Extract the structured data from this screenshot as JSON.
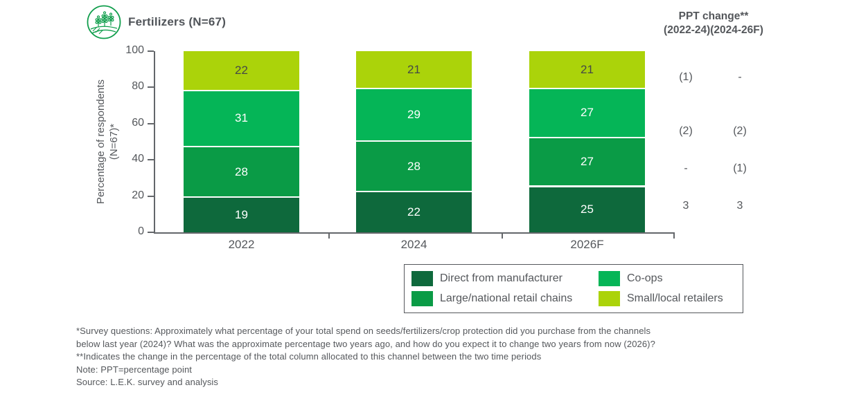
{
  "header": {
    "title": "Fertilizers (N=67)",
    "icon": "crops-field-icon",
    "ppt_header_line1": "PPT change**",
    "ppt_header_line2": "(2022-24)(2024-26F)"
  },
  "chart_data": {
    "type": "bar",
    "stacked": true,
    "title": "Fertilizers (N=67)",
    "categories": [
      "2022",
      "2024",
      "2026F"
    ],
    "series": [
      {
        "name": "Direct from manufacturer",
        "color": "#0e693c",
        "label_color": "#ffffff",
        "values": [
          19,
          22,
          25
        ]
      },
      {
        "name": "Large/national retail chains",
        "color": "#0a9b46",
        "label_color": "#ffffff",
        "values": [
          28,
          28,
          27
        ]
      },
      {
        "name": "Co-ops",
        "color": "#05b557",
        "label_color": "#ffffff",
        "values": [
          31,
          29,
          27
        ]
      },
      {
        "name": "Small/local retailers",
        "color": "#abd30a",
        "label_color": "#454847",
        "values": [
          22,
          21,
          21
        ]
      }
    ],
    "ylabel_line1": "Percentage of respondents",
    "ylabel_line2": "(N=67)*",
    "ylim": [
      0,
      100
    ],
    "yticks": [
      0,
      20,
      40,
      60,
      80,
      100
    ],
    "grid": false,
    "legend_position": "bottom-right"
  },
  "ppt_change": {
    "header_line1": "PPT change**",
    "header_line2": "(2022-24)(2024-26F)",
    "columns": [
      "2022-24",
      "2024-26F"
    ],
    "rows": [
      {
        "series": "Small/local retailers",
        "values": [
          "(1)",
          "-"
        ]
      },
      {
        "series": "Co-ops",
        "values": [
          "(2)",
          "(2)"
        ]
      },
      {
        "series": "Large/national retail chains",
        "values": [
          "-",
          "(1)"
        ]
      },
      {
        "series": "Direct from manufacturer",
        "values": [
          "3",
          "3"
        ]
      }
    ]
  },
  "legend": {
    "items": [
      {
        "label": "Direct from manufacturer",
        "color": "#0e693c"
      },
      {
        "label": "Co-ops",
        "color": "#05b557"
      },
      {
        "label": "Large/national retail chains",
        "color": "#0a9b46"
      },
      {
        "label": "Small/local retailers",
        "color": "#abd30a"
      }
    ]
  },
  "footnotes": [
    "*Survey questions: Approximately what percentage of your total spend on seeds/fertilizers/crop protection did you purchase from the channels",
    "below last year (2024)? What was the approximate percentage two years ago, and how do you expect it to change two years from now (2026)?",
    "**Indicates the change in the percentage of the total column allocated to this channel between the two time periods",
    "Note: PPT=percentage point",
    "Source: L.E.K. survey and analysis"
  ],
  "colors": {
    "accent_green": "#0f9d4b",
    "axis_gray": "#63666a",
    "text_gray": "#54575b"
  }
}
